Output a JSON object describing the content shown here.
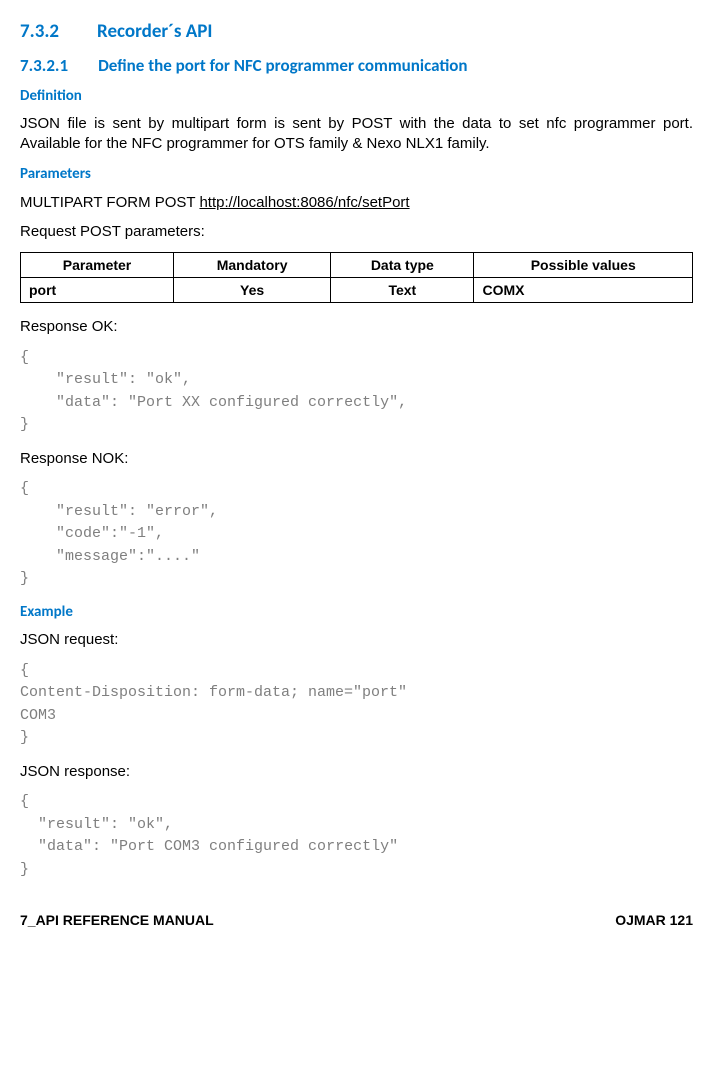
{
  "headings": {
    "h2_num": "7.3.2",
    "h2_title": "Recorder´s API",
    "h3_num": "7.3.2.1",
    "h3_title": "Define the port for NFC programmer communication",
    "definition": "Definition",
    "parameters": "Parameters",
    "example": "Example"
  },
  "body": {
    "definition_text": "JSON file is sent by multipart form is sent by POST with the data to set nfc programmer port. Available for the NFC programmer for OTS family & Nexo NLX1 family.",
    "method_line_prefix": "MULTIPART FORM POST ",
    "method_url": "http://localhost:8086/nfc/setPort",
    "request_params_label": "Request POST parameters:",
    "response_ok_label": "Response OK:",
    "response_nok_label": "Response NOK:",
    "json_request_label": "JSON request:",
    "json_response_label": "JSON response:"
  },
  "table": {
    "headers": [
      "Parameter",
      "Mandatory",
      "Data type",
      "Possible values"
    ],
    "row": [
      "port",
      "Yes",
      "Text",
      "COMX"
    ]
  },
  "code": {
    "response_ok": "{\n    \"result\": \"ok\",\n    \"data\": \"Port XX configured correctly\",\n}",
    "response_nok": "{\n    \"result\": \"error\",\n    \"code\":\"-1\",\n    \"message\":\"....\"\n}",
    "json_request": "{\nContent-Disposition: form-data; name=\"port\"\nCOM3\n}",
    "json_response": "{\n  \"result\": \"ok\",\n  \"data\": \"Port COM3 configured correctly\"\n}"
  },
  "footer": {
    "left": "7_API REFERENCE MANUAL",
    "right": "OJMAR 121"
  },
  "style": {
    "heading_color": "#0077c8",
    "code_color": "#7f7f7f"
  }
}
